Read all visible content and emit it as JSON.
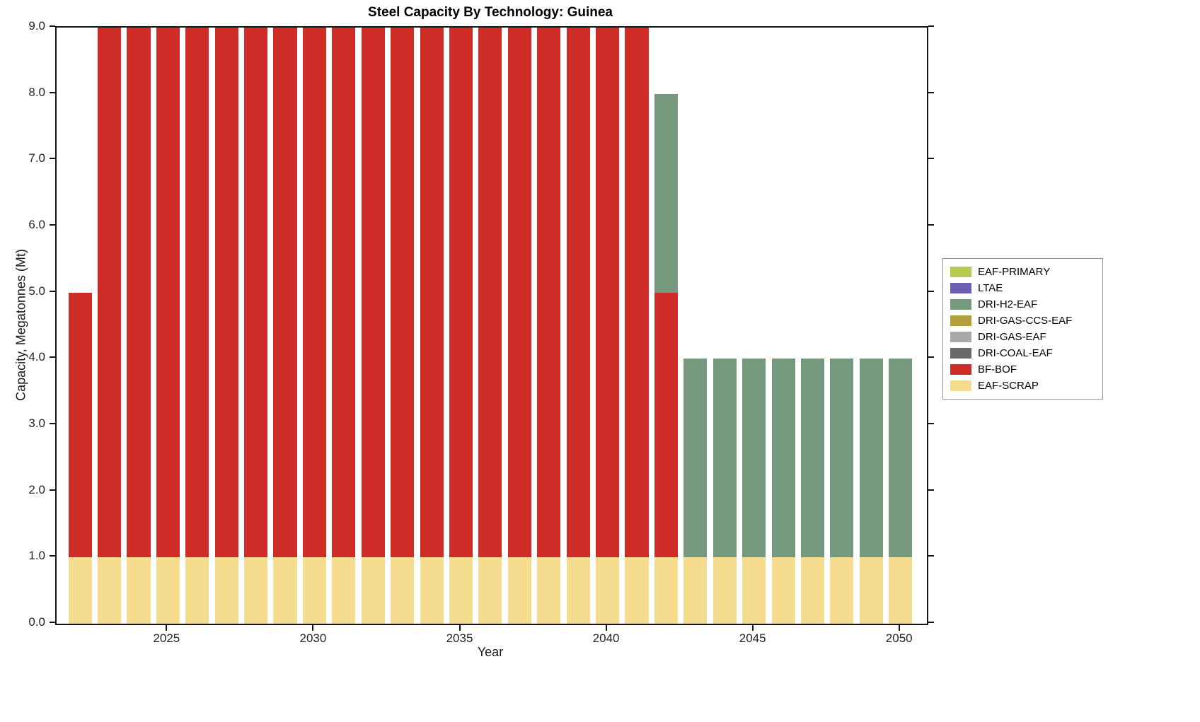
{
  "chart_data": {
    "type": "bar",
    "stacked": true,
    "title": "Steel Capacity By Technology: Guinea",
    "xlabel": "Year",
    "ylabel": "Capacity, Megatonnes (Mt)",
    "x": [
      2022,
      2023,
      2024,
      2025,
      2026,
      2027,
      2028,
      2029,
      2030,
      2031,
      2032,
      2033,
      2034,
      2035,
      2036,
      2037,
      2038,
      2039,
      2040,
      2041,
      2042,
      2043,
      2044,
      2045,
      2046,
      2047,
      2048,
      2049,
      2050
    ],
    "series": [
      {
        "name": "EAF-SCRAP",
        "color": "#f6dc8e",
        "values": [
          1,
          1,
          1,
          1,
          1,
          1,
          1,
          1,
          1,
          1,
          1,
          1,
          1,
          1,
          1,
          1,
          1,
          1,
          1,
          1,
          1,
          1,
          1,
          1,
          1,
          1,
          1,
          1,
          1
        ]
      },
      {
        "name": "BF-BOF",
        "color": "#cf2b27",
        "values": [
          4,
          8,
          8,
          8,
          8,
          8,
          8,
          8,
          8,
          8,
          8,
          8,
          8,
          8,
          8,
          8,
          8,
          8,
          8,
          8,
          4,
          0,
          0,
          0,
          0,
          0,
          0,
          0,
          0
        ]
      },
      {
        "name": "DRI-H2-EAF",
        "color": "#74997c",
        "values": [
          0,
          0,
          0,
          0,
          0,
          0,
          0,
          0,
          0,
          0,
          0,
          0,
          0,
          0,
          0,
          0,
          0,
          0,
          0,
          0,
          3,
          3,
          3,
          3,
          3,
          3,
          3,
          3,
          3
        ]
      }
    ],
    "ylim": [
      0,
      9
    ],
    "yticks": [
      "0.0",
      "1.0",
      "2.0",
      "3.0",
      "4.0",
      "5.0",
      "6.0",
      "7.0",
      "8.0",
      "9.0"
    ],
    "xticks": [
      2025,
      2030,
      2035,
      2040,
      2045,
      2050
    ],
    "grid": false,
    "legend": {
      "position": "right-outside",
      "entries": [
        {
          "label": "EAF-PRIMARY",
          "color": "#b9c953"
        },
        {
          "label": "LTAE",
          "color": "#6b5fb5"
        },
        {
          "label": "DRI-H2-EAF",
          "color": "#74997c"
        },
        {
          "label": "DRI-GAS-CCS-EAF",
          "color": "#b3a03c"
        },
        {
          "label": "DRI-GAS-EAF",
          "color": "#a9a9a9"
        },
        {
          "label": "DRI-COAL-EAF",
          "color": "#696969"
        },
        {
          "label": "BF-BOF",
          "color": "#cf2b27"
        },
        {
          "label": "EAF-SCRAP",
          "color": "#f6dc8e"
        }
      ]
    }
  }
}
